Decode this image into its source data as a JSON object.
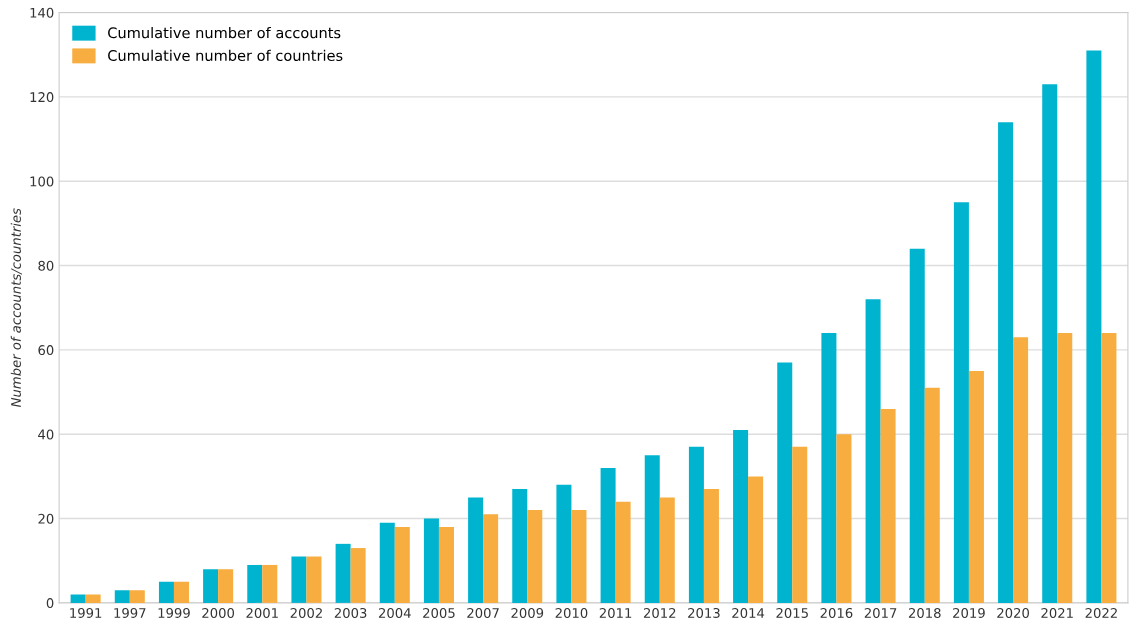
{
  "chart_data": {
    "type": "bar",
    "ylabel": "Number of accounts/countries",
    "categories": [
      "1991",
      "1997",
      "1999",
      "2000",
      "2001",
      "2002",
      "2003",
      "2004",
      "2005",
      "2007",
      "2009",
      "2010",
      "2011",
      "2012",
      "2013",
      "2014",
      "2015",
      "2016",
      "2017",
      "2018",
      "2019",
      "2020",
      "2021",
      "2022"
    ],
    "series": [
      {
        "name": "Cumulative number of accounts",
        "color": "#00b4d0",
        "values": [
          2,
          3,
          5,
          8,
          9,
          11,
          14,
          19,
          20,
          25,
          27,
          28,
          32,
          35,
          37,
          41,
          57,
          64,
          72,
          84,
          95,
          114,
          123,
          131
        ]
      },
      {
        "name": "Cumulative number of countries",
        "color": "#f7ad3f",
        "values": [
          2,
          3,
          5,
          8,
          9,
          11,
          13,
          18,
          18,
          21,
          22,
          22,
          24,
          25,
          27,
          30,
          37,
          40,
          46,
          51,
          55,
          63,
          64,
          64
        ]
      }
    ],
    "ylim": [
      0,
      140
    ],
    "yticks": [
      0,
      20,
      40,
      60,
      80,
      100,
      120,
      140
    ],
    "grid": "y",
    "legend": "top left"
  }
}
